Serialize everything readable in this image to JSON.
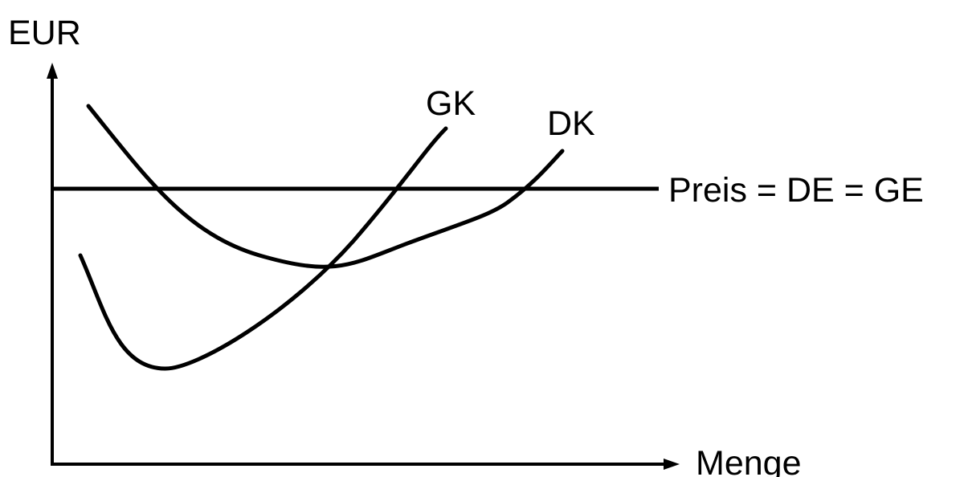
{
  "diagram": {
    "y_axis_label": "EUR",
    "x_axis_label": "Menge",
    "curves": [
      {
        "label": "GK"
      },
      {
        "label": "DK"
      }
    ],
    "price_line_label": "Preis = DE = GE",
    "color": "#000000"
  }
}
